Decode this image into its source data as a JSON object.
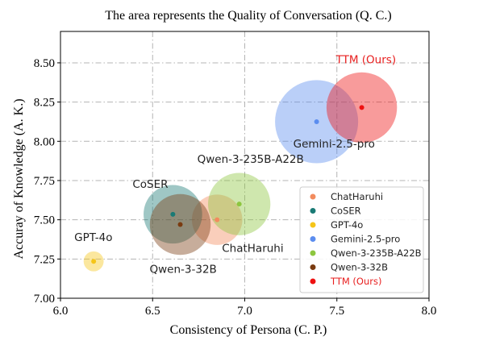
{
  "chart_data": {
    "type": "scatter",
    "title": "The area represents the Quality of Conversation (Q. C.)",
    "xlabel": "Consistency of Persona (C. P.)",
    "ylabel": "Accuray of Knowledge (A. K.)",
    "xlim": [
      6.0,
      8.0
    ],
    "ylim": [
      7.0,
      8.7
    ],
    "xticks": [
      6.0,
      6.5,
      7.0,
      7.5,
      8.0
    ],
    "xtick_labels": [
      "6.0",
      "6.5",
      "7.0",
      "7.5",
      "8.0"
    ],
    "yticks": [
      7.0,
      7.25,
      7.5,
      7.75,
      8.0,
      8.25,
      8.5
    ],
    "ytick_labels": [
      "7.00",
      "7.25",
      "7.50",
      "7.75",
      "8.00",
      "8.25",
      "8.50"
    ],
    "grid": true,
    "legend_position": "lower-right",
    "size_encoding": "Quality of Conversation (Q. C.)",
    "series": [
      {
        "name": "ChatHaruhi",
        "x": 6.85,
        "y": 7.5,
        "relative_size": 0.68,
        "color": "#F28B5E",
        "label": "ChatHaruhi",
        "label_color": "#222222"
      },
      {
        "name": "CoSER",
        "x": 6.61,
        "y": 7.535,
        "relative_size": 0.79,
        "color": "#1A7A75",
        "label": "CoSER",
        "label_color": "#222222"
      },
      {
        "name": "GPT-4o",
        "x": 6.18,
        "y": 7.235,
        "relative_size": 0.27,
        "color": "#F5C518",
        "label": "GPT-4o",
        "label_color": "#222222"
      },
      {
        "name": "Gemini-2.5-pro",
        "x": 7.39,
        "y": 8.125,
        "relative_size": 1.12,
        "color": "#5B8DEF",
        "label": "Gemini-2.5-pro",
        "label_color": "#222222"
      },
      {
        "name": "Qwen-3-235B-A22B",
        "x": 6.97,
        "y": 7.6,
        "relative_size": 0.84,
        "color": "#8DC63F",
        "label": "Qwen-3-235B-A22B",
        "label_color": "#222222"
      },
      {
        "name": "Qwen-3-32B",
        "x": 6.65,
        "y": 7.47,
        "relative_size": 0.82,
        "color": "#7A3B10",
        "label": "Qwen-3-32B",
        "label_color": "#222222"
      },
      {
        "name": "TTM (Ours)",
        "x": 7.635,
        "y": 8.215,
        "relative_size": 0.95,
        "color": "#EE1111",
        "label": "TTM (Ours)",
        "label_color": "#E82020"
      }
    ]
  }
}
